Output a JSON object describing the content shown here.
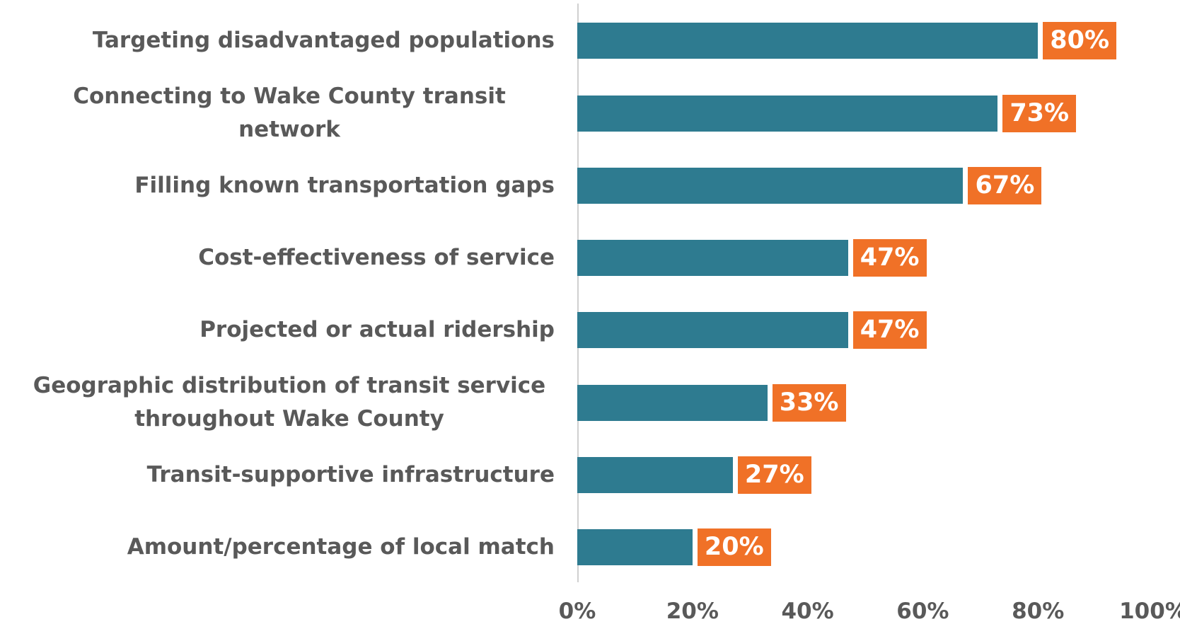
{
  "chart_data": {
    "type": "bar",
    "orientation": "horizontal",
    "categories": [
      "Targeting disadvantaged populations",
      "Connecting to Wake County transit network",
      "Filling known transportation gaps",
      "Cost-effectiveness of service",
      "Projected or actual ridership",
      "Geographic distribution of transit service throughout Wake County",
      "Transit-supportive infrastructure",
      "Amount/percentage of local match"
    ],
    "values": [
      80,
      73,
      67,
      47,
      47,
      33,
      27,
      20
    ],
    "value_labels": [
      "80%",
      "73%",
      "67%",
      "47%",
      "47%",
      "33%",
      "27%",
      "20%"
    ],
    "color": "#2e7b90",
    "label_color": "#f07127",
    "xlim": [
      0,
      100
    ],
    "xticks": [
      {
        "value": 0,
        "label": "0%"
      },
      {
        "value": 20,
        "label": "20%"
      },
      {
        "value": 40,
        "label": "40%"
      },
      {
        "value": 60,
        "label": "60%"
      },
      {
        "value": 80,
        "label": "80%"
      },
      {
        "value": 100,
        "label": "100%"
      }
    ],
    "grid": false
  }
}
